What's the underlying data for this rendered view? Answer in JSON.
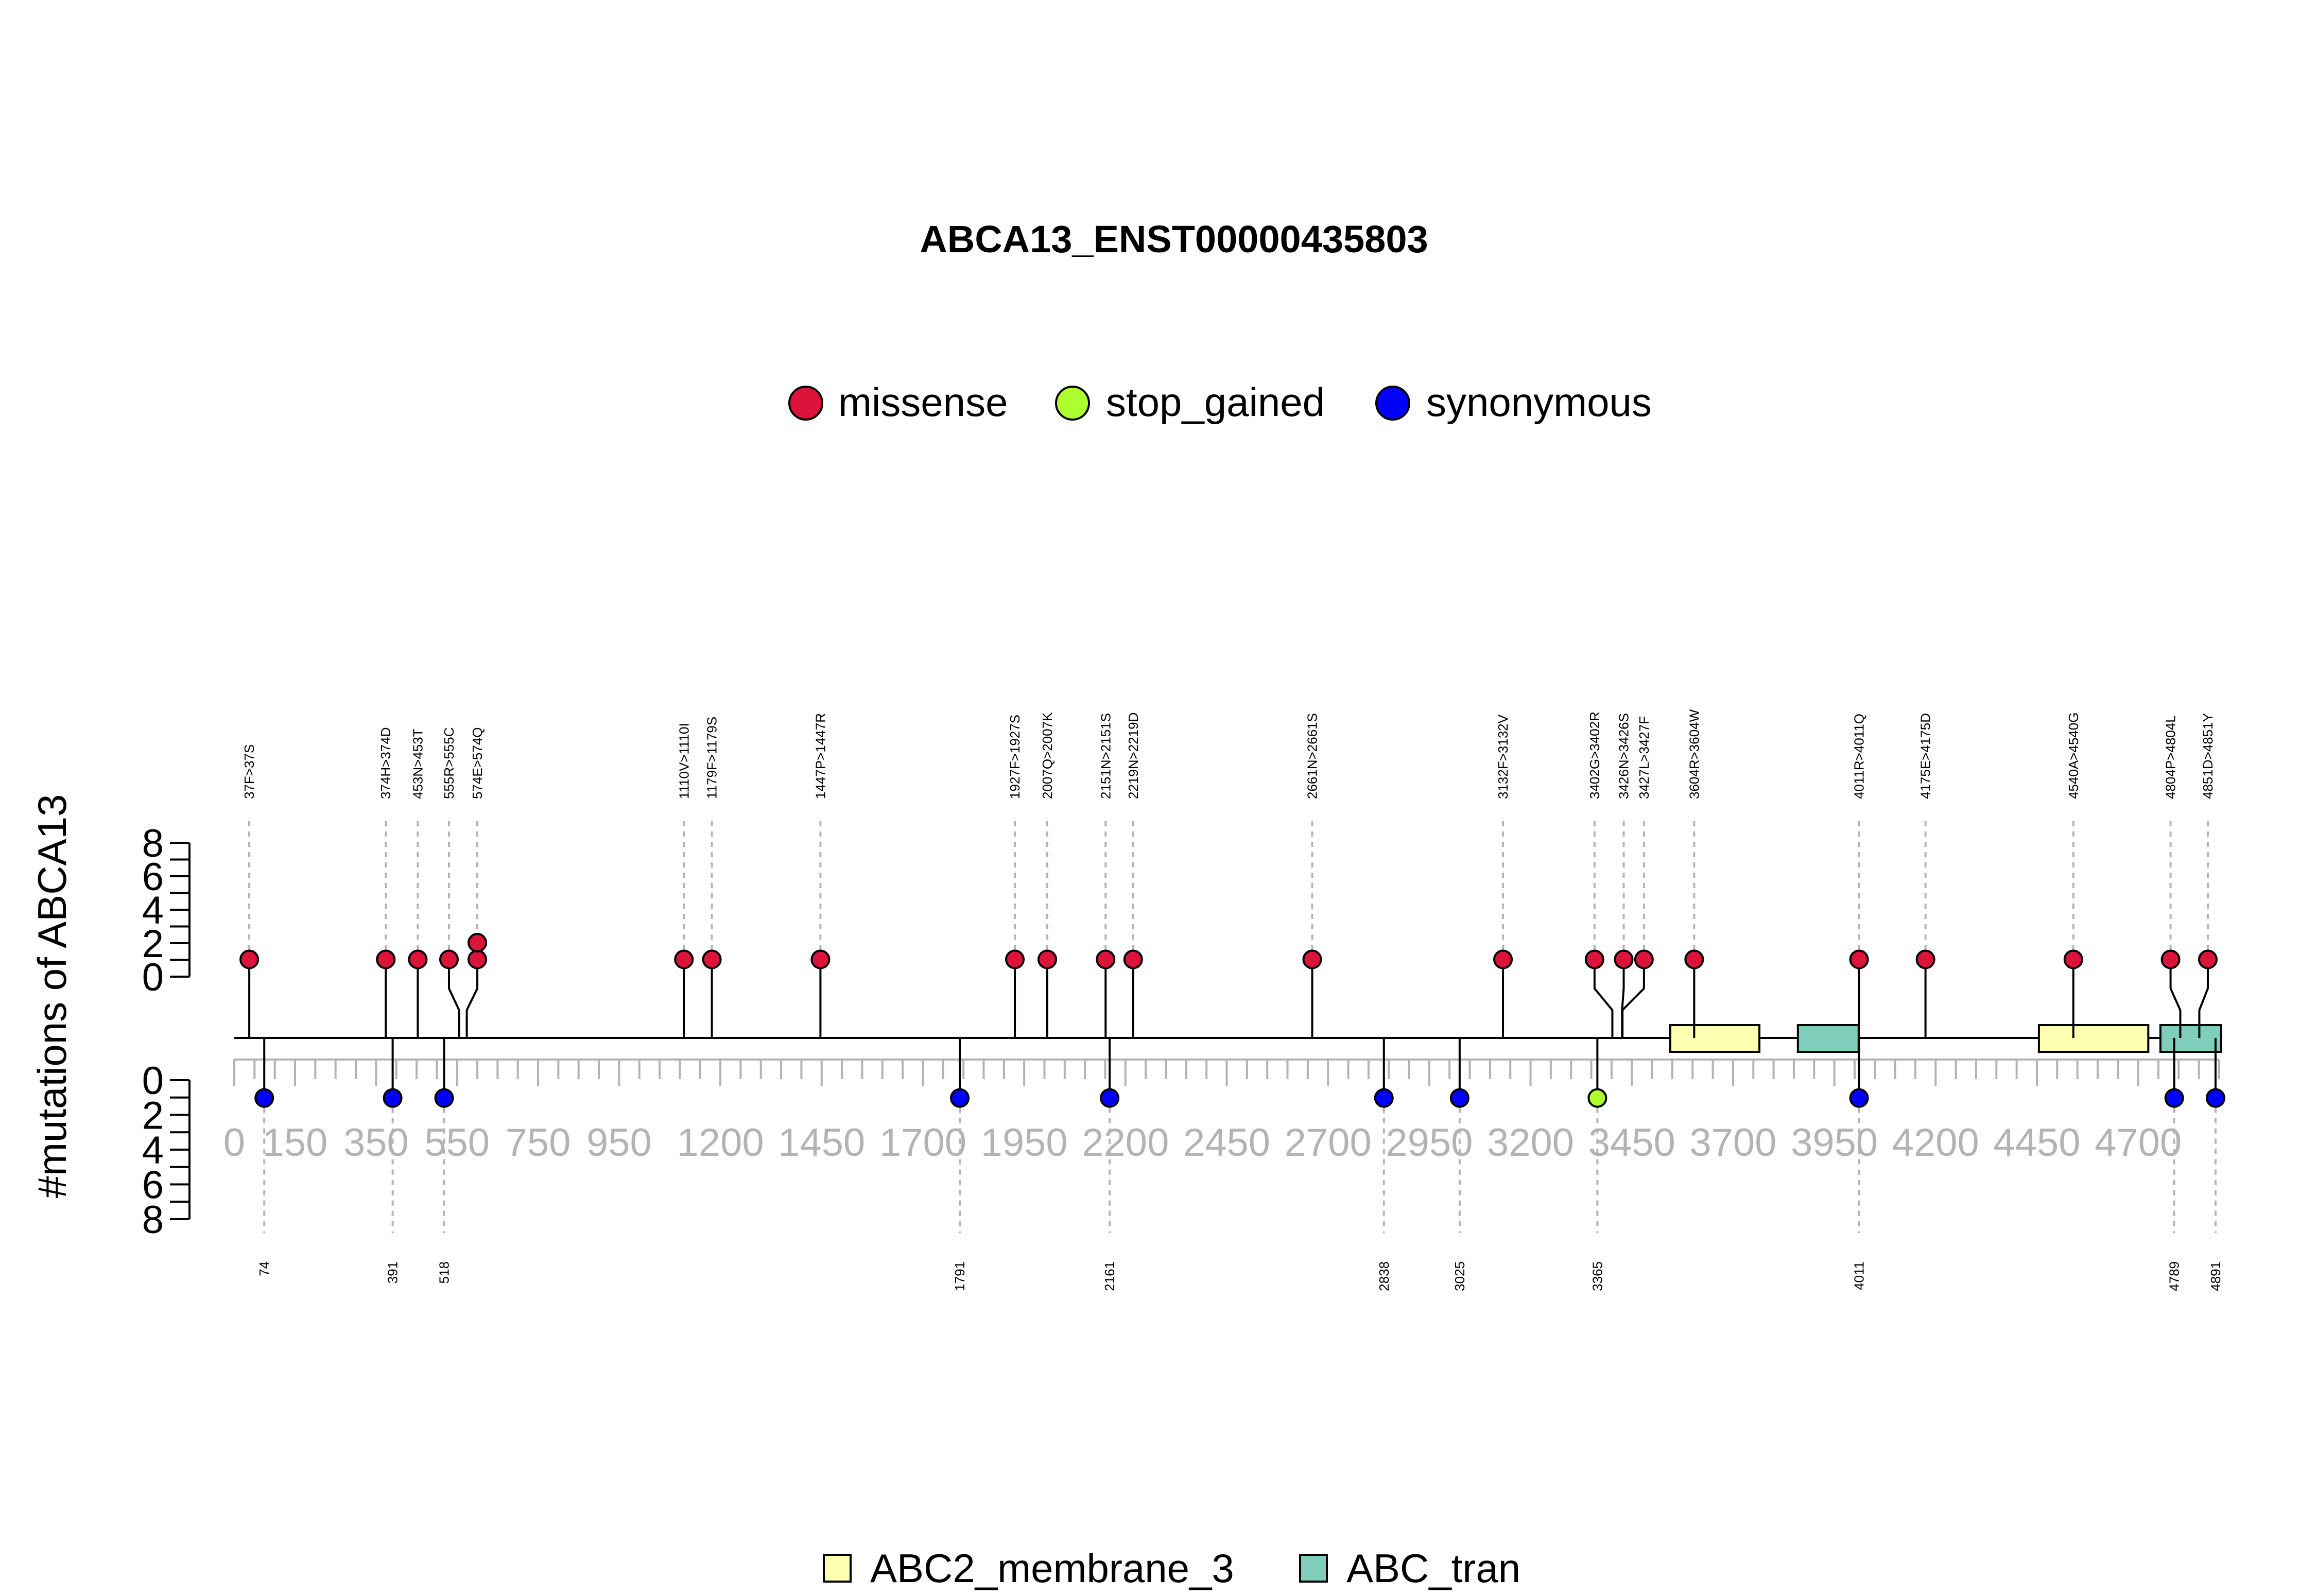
{
  "chart_data": {
    "type": "lollipop",
    "title": "ABCA13_ENST00000435803",
    "ylabel": "#mutations of ABCA13",
    "xlim": [
      0,
      4900
    ],
    "x_ticks": [
      0,
      150,
      350,
      550,
      750,
      950,
      1200,
      1450,
      1700,
      1950,
      2200,
      2450,
      2700,
      2950,
      3200,
      3450,
      3700,
      3950,
      4200,
      4450,
      4700
    ],
    "y_ticks_top": [
      0,
      2,
      4,
      6,
      8
    ],
    "y_ticks_bottom": [
      0,
      2,
      4,
      6,
      8
    ],
    "ylim_top": [
      0,
      8
    ],
    "ylim_bottom": [
      0,
      8
    ],
    "legend": [
      {
        "name": "missense",
        "color": "#DC143C"
      },
      {
        "name": "stop_gained",
        "color": "#ADFF2F"
      },
      {
        "name": "synonymous",
        "color": "#0000FF"
      }
    ],
    "upper_mutations": [
      {
        "pos": 37,
        "label": "37F>37S",
        "count": 1,
        "type": "missense",
        "label_pos": 37
      },
      {
        "pos": 374,
        "label": "374H>374D",
        "count": 1,
        "type": "missense",
        "label_pos": 374
      },
      {
        "pos": 453,
        "label": "453N>453T",
        "count": 1,
        "type": "missense",
        "label_pos": 453
      },
      {
        "pos": 555,
        "label": "555R>555C",
        "count": 1,
        "type": "missense",
        "label_pos": 530
      },
      {
        "pos": 574,
        "label": "574E>574Q",
        "count": 2,
        "type": "missense",
        "label_pos": 600
      },
      {
        "pos": 1110,
        "label": "1110V>1110I",
        "count": 1,
        "type": "missense",
        "label_pos": 1110
      },
      {
        "pos": 1179,
        "label": "1179F>1179S",
        "count": 1,
        "type": "missense",
        "label_pos": 1179
      },
      {
        "pos": 1447,
        "label": "1447P>1447R",
        "count": 1,
        "type": "missense",
        "label_pos": 1447
      },
      {
        "pos": 1927,
        "label": "1927F>1927S",
        "count": 1,
        "type": "missense",
        "label_pos": 1927
      },
      {
        "pos": 2007,
        "label": "2007Q>2007K",
        "count": 1,
        "type": "missense",
        "label_pos": 2007
      },
      {
        "pos": 2151,
        "label": "2151N>2151S",
        "count": 1,
        "type": "missense",
        "label_pos": 2151
      },
      {
        "pos": 2219,
        "label": "2219N>2219D",
        "count": 1,
        "type": "missense",
        "label_pos": 2219
      },
      {
        "pos": 2661,
        "label": "2661N>2661S",
        "count": 1,
        "type": "missense",
        "label_pos": 2661
      },
      {
        "pos": 3132,
        "label": "3132F>3132V",
        "count": 1,
        "type": "missense",
        "label_pos": 3132
      },
      {
        "pos": 3402,
        "label": "3402G>3402R",
        "count": 1,
        "type": "missense",
        "label_pos": 3358
      },
      {
        "pos": 3426,
        "label": "3426N>3426S",
        "count": 1,
        "type": "missense",
        "label_pos": 3430
      },
      {
        "pos": 3427,
        "label": "3427L>3427F",
        "count": 1,
        "type": "missense",
        "label_pos": 3480
      },
      {
        "pos": 3604,
        "label": "3604R>3604W",
        "count": 1,
        "type": "missense",
        "label_pos": 3604
      },
      {
        "pos": 4011,
        "label": "4011R>4011Q",
        "count": 1,
        "type": "missense",
        "label_pos": 4011
      },
      {
        "pos": 4175,
        "label": "4175E>4175D",
        "count": 1,
        "type": "missense",
        "label_pos": 4175
      },
      {
        "pos": 4540,
        "label": "4540A>4540G",
        "count": 1,
        "type": "missense",
        "label_pos": 4540
      },
      {
        "pos": 4804,
        "label": "4804P>4804L",
        "count": 1,
        "type": "missense",
        "label_pos": 4780
      },
      {
        "pos": 4851,
        "label": "4851D>4851Y",
        "count": 1,
        "type": "missense",
        "label_pos": 4872
      }
    ],
    "lower_mutations": [
      {
        "pos": 74,
        "label": "74",
        "count": 1,
        "type": "synonymous"
      },
      {
        "pos": 391,
        "label": "391",
        "count": 1,
        "type": "synonymous"
      },
      {
        "pos": 518,
        "label": "518",
        "count": 1,
        "type": "synonymous"
      },
      {
        "pos": 1791,
        "label": "1791",
        "count": 1,
        "type": "synonymous"
      },
      {
        "pos": 2161,
        "label": "2161",
        "count": 1,
        "type": "synonymous"
      },
      {
        "pos": 2838,
        "label": "2838",
        "count": 1,
        "type": "synonymous"
      },
      {
        "pos": 3025,
        "label": "3025",
        "count": 1,
        "type": "synonymous"
      },
      {
        "pos": 3365,
        "label": "3365",
        "count": 1,
        "type": "stop_gained"
      },
      {
        "pos": 4011,
        "label": "4011",
        "count": 1,
        "type": "synonymous"
      },
      {
        "pos": 4789,
        "label": "4789",
        "count": 1,
        "type": "synonymous"
      },
      {
        "pos": 4891,
        "label": "4891",
        "count": 1,
        "type": "synonymous"
      }
    ],
    "domains": [
      {
        "name": "ABC2_membrane_3",
        "start": 3545,
        "end": 3765,
        "color": "#FFFFB3"
      },
      {
        "name": "ABC_tran",
        "start": 3860,
        "end": 4010,
        "color": "#7FCDBB"
      },
      {
        "name": "ABC2_membrane_3",
        "start": 4455,
        "end": 4725,
        "color": "#FFFFB3"
      },
      {
        "name": "ABC_tran",
        "start": 4755,
        "end": 4905,
        "color": "#7FCDBB"
      }
    ],
    "domain_legend": [
      {
        "name": "ABC2_membrane_3",
        "color": "#FFFFB3"
      },
      {
        "name": "ABC_tran",
        "color": "#7FCDBB"
      }
    ]
  }
}
